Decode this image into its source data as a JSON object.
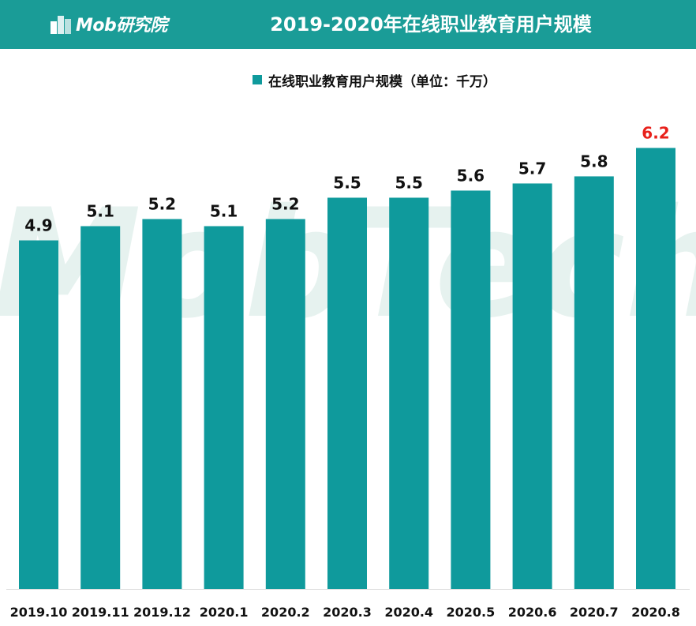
{
  "header": {
    "logo_text": "Mob研究院",
    "title": "2019-2020年在线职业教育用户规模"
  },
  "colors": {
    "header_bg": "#1a9c97",
    "bar": "#0f9a9c",
    "label": "#111111",
    "highlight_label": "#e8211b",
    "watermark": "#e6f2ef"
  },
  "chart_data": {
    "type": "bar",
    "title": "2019-2020年在线职业教育用户规模",
    "categories": [
      "2019.10",
      "2019.11",
      "2019.12",
      "2020.1",
      "2020.2",
      "2020.3",
      "2020.4",
      "2020.5",
      "2020.6",
      "2020.7",
      "2020.8"
    ],
    "series": [
      {
        "name": "在线职业教育用户规模（单位：千万）",
        "values": [
          4.9,
          5.1,
          5.2,
          5.1,
          5.2,
          5.5,
          5.5,
          5.6,
          5.7,
          5.8,
          6.2
        ]
      }
    ],
    "highlight_index": 10,
    "data_labels": true,
    "legend": "top-center",
    "grid": false,
    "y_axis_visible": false
  }
}
